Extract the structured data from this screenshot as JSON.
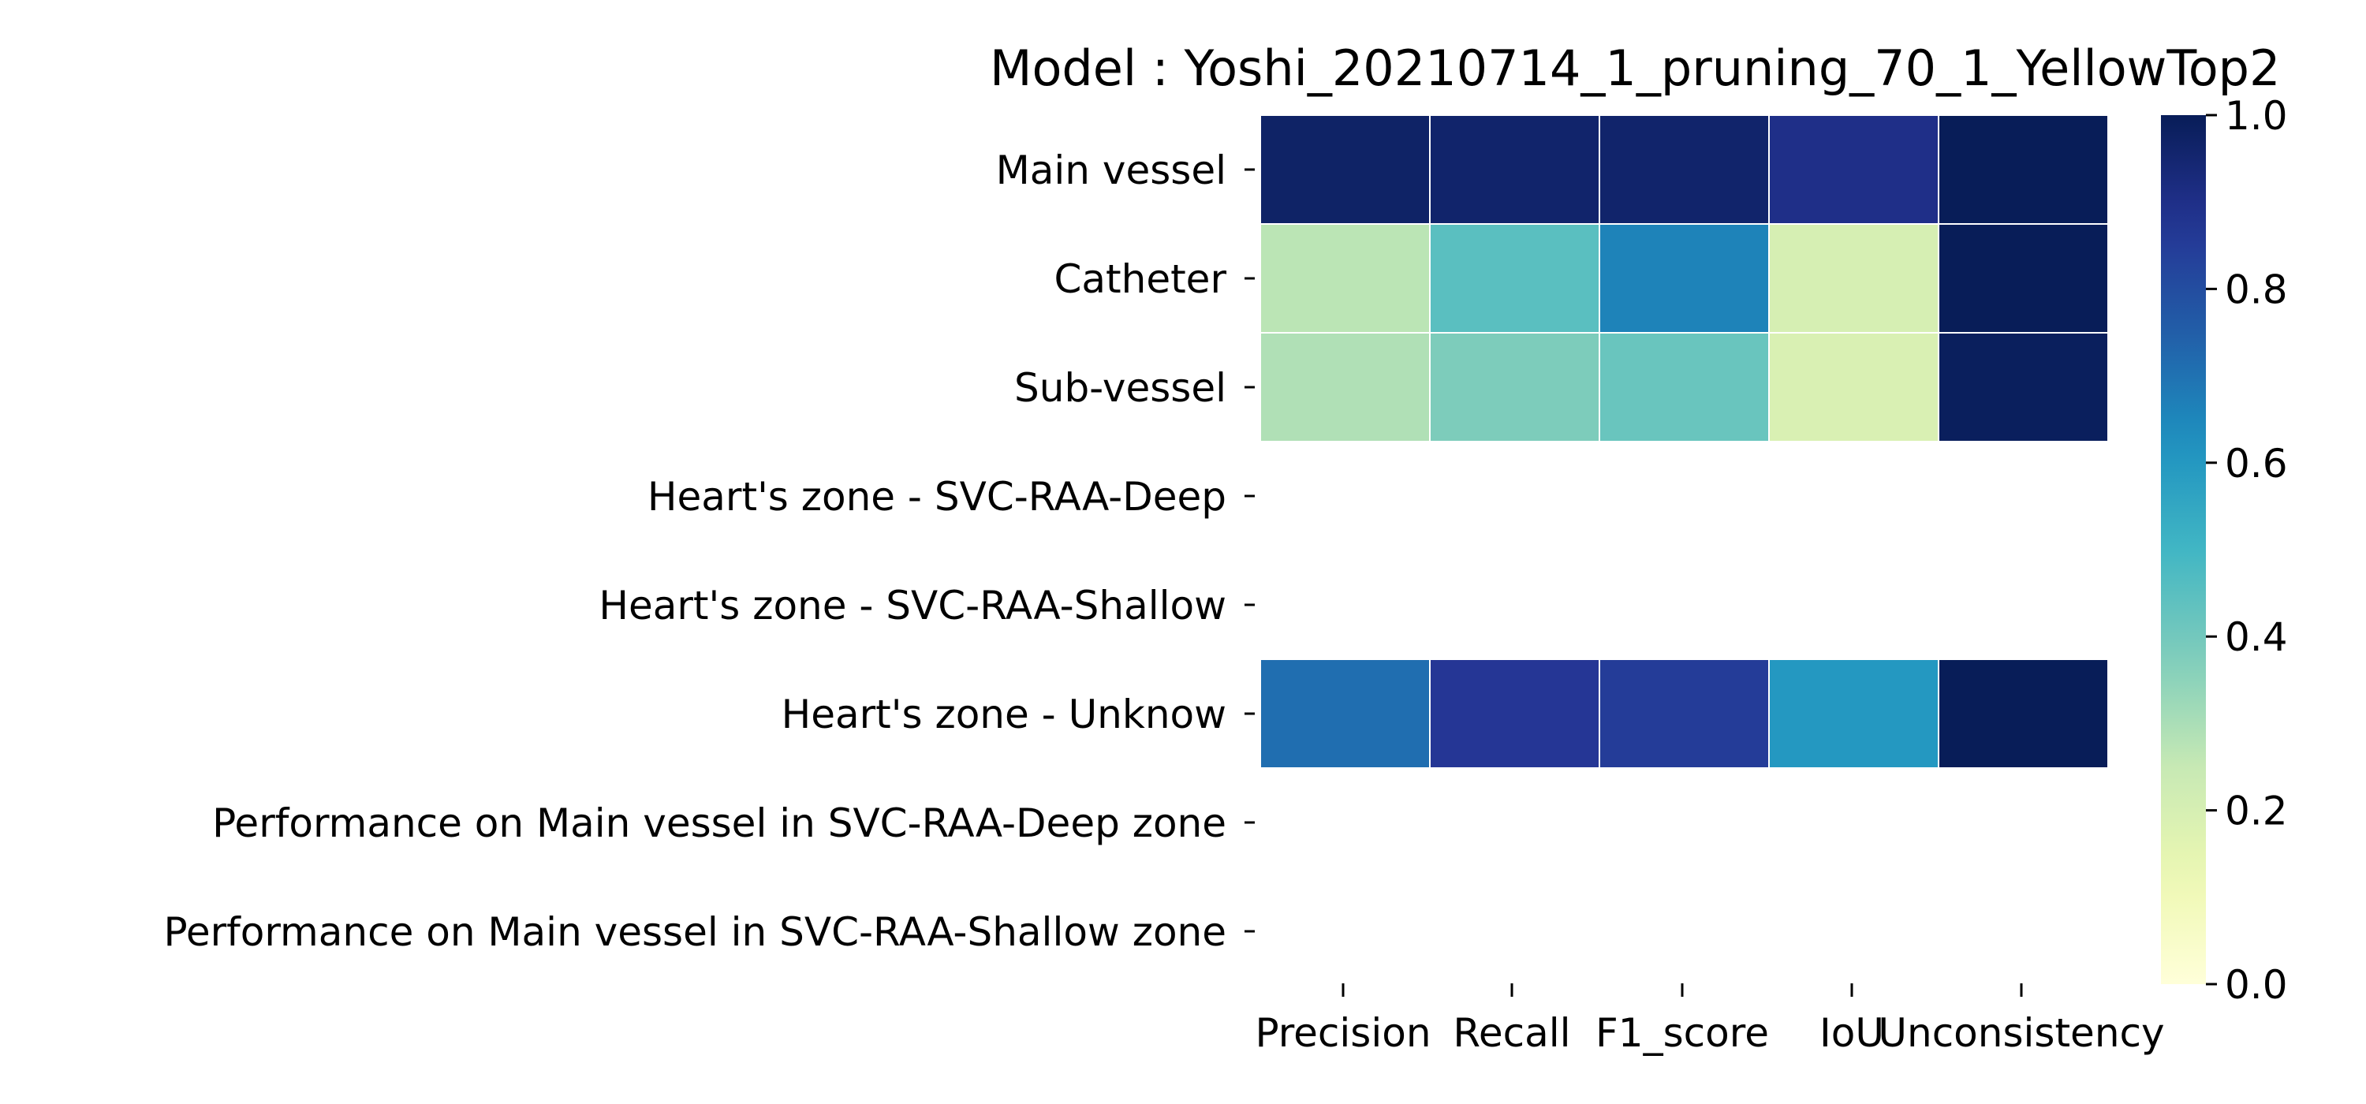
{
  "chart_data": {
    "type": "heatmap",
    "title": "Model : Yoshi_20210714_1_pruning_70_1_YellowTop2",
    "columns": [
      "Precision",
      "Recall",
      "F1_score",
      "IoU",
      "Unconsistency"
    ],
    "rows": [
      "Main vessel  ",
      "Catheter",
      "Sub-vessel ",
      "Heart's zone - SVC-RAA-Deep  ",
      "Heart's zone - SVC-RAA-Shallow ",
      "Heart's zone - Unknow",
      "Performance on Main vessel in SVC-RAA-Deep zone",
      "Performance on Main vessel in SVC-RAA-Shallow zone"
    ],
    "values": [
      [
        0.97,
        0.96,
        0.96,
        0.9,
        1.0
      ],
      [
        0.27,
        0.45,
        0.66,
        0.2,
        1.0
      ],
      [
        0.29,
        0.38,
        0.42,
        0.19,
        0.99
      ],
      [
        null,
        null,
        null,
        null,
        null
      ],
      [
        null,
        null,
        null,
        null,
        null
      ],
      [
        0.71,
        0.87,
        0.85,
        0.6,
        1.0
      ],
      [
        null,
        null,
        null,
        null,
        null
      ],
      [
        null,
        null,
        null,
        null,
        null
      ]
    ],
    "colorbar": {
      "range": [
        0.0,
        1.0
      ],
      "ticks": [
        "0.0",
        "0.2",
        "0.4",
        "0.6",
        "0.8",
        "1.0"
      ],
      "colormap": "YlGnBu"
    }
  }
}
